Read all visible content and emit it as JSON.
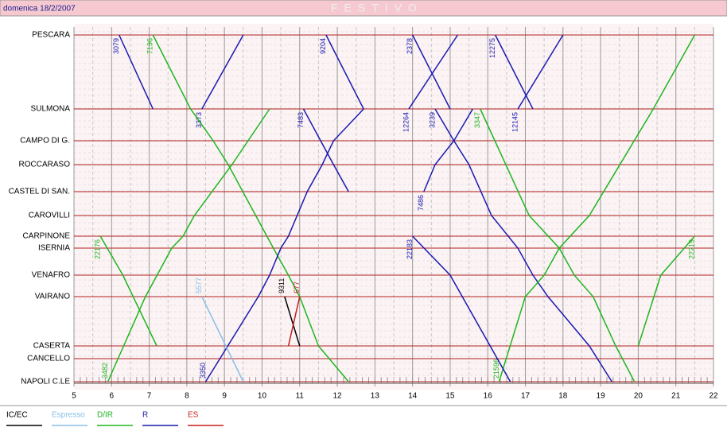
{
  "date": "domenica 18/2/2007",
  "chart_data": {
    "type": "line",
    "title": "FESTIVO",
    "categories": [
      "PESCARA",
      "SULMONA",
      "CAMPO DI G.",
      "ROCCARASO",
      "CASTEL DI SAN.",
      "CAROVILLI",
      "CARPINONE",
      "ISERNIA",
      "VENAFRO",
      "VAIRANO",
      "CASERTA",
      "CANCELLO",
      "NAPOLI C.LE"
    ],
    "xlim": [
      5,
      22
    ],
    "xticks": [
      5,
      6,
      7,
      8,
      9,
      10,
      11,
      12,
      13,
      14,
      15,
      16,
      17,
      18,
      19,
      20,
      21,
      22
    ],
    "grid": true,
    "legend": [
      {
        "name": "IC/EC",
        "color": "#000000"
      },
      {
        "name": "Espresso",
        "color": "#87bfe8"
      },
      {
        "name": "D/IR",
        "color": "#1fb51f"
      },
      {
        "name": "R",
        "color": "#1a1ab0"
      },
      {
        "name": "ES",
        "color": "#c81e1e"
      }
    ],
    "series": [
      {
        "name": "3079",
        "color": "#1a1ab0",
        "x": [
          6.2,
          7.1
        ],
        "values": [
          "PESCARA",
          "SULMONA"
        ]
      },
      {
        "name": "3373",
        "color": "#1a1ab0",
        "x": [
          8.4,
          9.5
        ],
        "values": [
          "SULMONA",
          "PESCARA"
        ]
      },
      {
        "name": "9204",
        "color": "#1a1ab0",
        "x": [
          11.7,
          12.7
        ],
        "values": [
          "PESCARA",
          "SULMONA"
        ]
      },
      {
        "name": "2378",
        "color": "#1a1ab0",
        "x": [
          14.0,
          15.0
        ],
        "values": [
          "PESCARA",
          "SULMONA"
        ]
      },
      {
        "name": "12264",
        "color": "#1a1ab0",
        "x": [
          13.9,
          15.2
        ],
        "values": [
          "SULMONA",
          "PESCARA"
        ]
      },
      {
        "name": "12275",
        "color": "#1a1ab0",
        "x": [
          16.2,
          17.2
        ],
        "values": [
          "PESCARA",
          "SULMONA"
        ]
      },
      {
        "name": "12145",
        "color": "#1a1ab0",
        "x": [
          16.8,
          18.0
        ],
        "values": [
          "SULMONA",
          "PESCARA"
        ]
      },
      {
        "name": "7196",
        "color": "#1fb51f",
        "x": [
          7.1,
          8.1,
          8.7,
          9.1,
          10.3,
          10.7,
          11.0,
          11.5,
          12.3
        ],
        "values": [
          "PESCARA",
          "SULMONA",
          "CAMPO DI G.",
          "ROCCARASO",
          "ISERNIA",
          "VENAFRO",
          "VAIRANO",
          "CASERTA",
          "NAPOLI C.LE"
        ]
      },
      {
        "name": "3482",
        "color": "#1fb51f",
        "x": [
          5.9,
          6.9,
          7.6,
          7.9,
          8.2,
          9.2,
          10.2
        ],
        "values": [
          "NAPOLI C.LE",
          "VAIRANO",
          "ISERNIA",
          "CARPINONE",
          "CAROVILLI",
          "ROCCARASO",
          "SULMONA"
        ]
      },
      {
        "name": "3350",
        "color": "#1a1ab0",
        "x": [
          8.5,
          9.9,
          10.2,
          10.5,
          10.7,
          11.2,
          11.6,
          11.9,
          12.7
        ],
        "values": [
          "NAPOLI C.LE",
          "VAIRANO",
          "VENAFRO",
          "ISERNIA",
          "CARPINONE",
          "CASTEL DI SAN.",
          "ROCCARASO",
          "CAMPO DI G.",
          "SULMONA"
        ]
      },
      {
        "name": "7483",
        "color": "#1a1ab0",
        "x": [
          11.1,
          11.9,
          12.3
        ],
        "values": [
          "SULMONA",
          "ROCCARASO",
          "CASTEL DI SAN."
        ]
      },
      {
        "name": "7486",
        "color": "#1a1ab0",
        "x": [
          14.3,
          14.6,
          15.1,
          15.6
        ],
        "values": [
          "CASTEL DI SAN.",
          "ROCCARASO",
          "CAMPO DI G.",
          "SULMONA"
        ]
      },
      {
        "name": "3239",
        "color": "#1a1ab0",
        "x": [
          14.6,
          15.1,
          15.5,
          16.1,
          16.8,
          17.2,
          17.6,
          18.7,
          19.3
        ],
        "values": [
          "SULMONA",
          "CAMPO DI G.",
          "ROCCARASO",
          "CAROVILLI",
          "ISERNIA",
          "VENAFRO",
          "VAIRANO",
          "CASERTA",
          "NAPOLI C.LE"
        ]
      },
      {
        "name": "3347",
        "color": "#1fb51f",
        "x": [
          15.8,
          17.1,
          17.9,
          18.3,
          18.8,
          19.4,
          19.9
        ],
        "values": [
          "SULMONA",
          "CAROVILLI",
          "ISERNIA",
          "VENAFRO",
          "VAIRANO",
          "CASERTA",
          "NAPOLI C.LE"
        ]
      },
      {
        "name": "21596",
        "color": "#1fb51f",
        "x": [
          16.3,
          17.0,
          17.5,
          17.9,
          18.7,
          20.4,
          21.5
        ],
        "values": [
          "NAPOLI C.LE",
          "VAIRANO",
          "VENAFRO",
          "ISERNIA",
          "CAROVILLI",
          "SULMONA",
          "PESCARA"
        ]
      },
      {
        "name": "5577",
        "color": "#87bfe8",
        "x": [
          8.4,
          9.5
        ],
        "values": [
          "VAIRANO",
          "NAPOLI C.LE"
        ]
      },
      {
        "name": "9311",
        "color": "#000000",
        "x": [
          10.6,
          11.0
        ],
        "values": [
          "VAIRANO",
          "CASERTA"
        ]
      },
      {
        "name": "677",
        "color": "#c81e1e",
        "x": [
          11.0,
          10.7
        ],
        "values": [
          "VAIRANO",
          "CASERTA"
        ]
      },
      {
        "name": "22176",
        "color": "#1fb51f",
        "x": [
          5.7,
          6.3,
          7.2
        ],
        "values": [
          "CARPINONE",
          "VENAFRO",
          "CASERTA"
        ]
      },
      {
        "name": "22183",
        "color": "#1a1ab0",
        "x": [
          14.0,
          15.0,
          16.6
        ],
        "values": [
          "CARPINONE",
          "VENAFRO",
          "NAPOLI C.LE"
        ]
      },
      {
        "name": "22219",
        "color": "#1fb51f",
        "x": [
          21.5,
          20.6,
          20.0
        ],
        "values": [
          "CARPINONE",
          "VENAFRO",
          "CASERTA"
        ]
      }
    ]
  }
}
